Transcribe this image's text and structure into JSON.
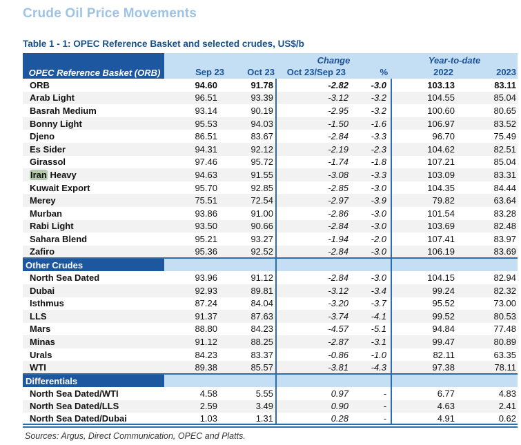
{
  "page": {
    "title": "Crude Oil Price Movements",
    "table_title": "Table 1 - 1: OPEC Reference Basket and selected crudes, US$/b",
    "sources": "Sources:  Argus, Direct Communication, OPEC and Platts."
  },
  "colors": {
    "page_title_blue": "#9DC3E6",
    "table_title_blue": "#164E8C",
    "dark_header_blue": "#1C57A0",
    "light_header_blue": "#C4DEF4",
    "header_text_blue": "#1A5296",
    "divider_blue": "#2A6CAD",
    "row_stripe_gray": "#F2F2F2",
    "search_highlight_green": "#B3CBAA"
  },
  "table": {
    "name_header": "OPEC Reference Basket (ORB)",
    "group_change": "Change",
    "group_ytd": "Year-to-date",
    "columns": [
      "Sep 23",
      "Oct 23",
      "Oct 23/Sep 23",
      "%",
      "2022",
      "2023"
    ],
    "sections": [
      {
        "header": null,
        "rows": [
          {
            "name": "ORB",
            "bold": true,
            "values": [
              "94.60",
              "91.78",
              "-2.82",
              "-3.0",
              "103.13",
              "83.11"
            ]
          },
          {
            "name": "Arab Light",
            "values": [
              "96.51",
              "93.39",
              "-3.12",
              "-3.2",
              "104.55",
              "85.04"
            ]
          },
          {
            "name": "Basrah Medium",
            "values": [
              "93.14",
              "90.19",
              "-2.95",
              "-3.2",
              "100.60",
              "80.65"
            ]
          },
          {
            "name": "Bonny Light",
            "values": [
              "95.53",
              "94.03",
              "-1.50",
              "-1.6",
              "106.97",
              "83.52"
            ]
          },
          {
            "name": "Djeno",
            "values": [
              "86.51",
              "83.67",
              "-2.84",
              "-3.3",
              "96.70",
              "75.49"
            ]
          },
          {
            "name": "Es Sider",
            "values": [
              "94.31",
              "92.12",
              "-2.19",
              "-2.3",
              "104.62",
              "82.51"
            ]
          },
          {
            "name": "Girassol",
            "values": [
              "97.46",
              "95.72",
              "-1.74",
              "-1.8",
              "107.21",
              "85.04"
            ]
          },
          {
            "name": "Iran Heavy",
            "highlight_word": "Iran",
            "values": [
              "94.63",
              "91.55",
              "-3.08",
              "-3.3",
              "103.09",
              "83.31"
            ]
          },
          {
            "name": "Kuwait Export",
            "values": [
              "95.70",
              "92.85",
              "-2.85",
              "-3.0",
              "104.35",
              "84.44"
            ]
          },
          {
            "name": "Merey",
            "values": [
              "75.51",
              "72.54",
              "-2.97",
              "-3.9",
              "79.82",
              "63.64"
            ]
          },
          {
            "name": "Murban",
            "values": [
              "93.86",
              "91.00",
              "-2.86",
              "-3.0",
              "101.54",
              "83.28"
            ]
          },
          {
            "name": "Rabi Light",
            "values": [
              "93.50",
              "90.66",
              "-2.84",
              "-3.0",
              "103.69",
              "82.48"
            ]
          },
          {
            "name": "Sahara Blend",
            "values": [
              "95.21",
              "93.27",
              "-1.94",
              "-2.0",
              "107.41",
              "83.97"
            ]
          },
          {
            "name": "Zafiro",
            "values": [
              "95.36",
              "92.52",
              "-2.84",
              "-3.0",
              "106.19",
              "83.69"
            ]
          }
        ]
      },
      {
        "header": "Other Crudes",
        "rows": [
          {
            "name": "North Sea Dated",
            "values": [
              "93.96",
              "91.12",
              "-2.84",
              "-3.0",
              "104.15",
              "82.94"
            ]
          },
          {
            "name": "Dubai",
            "values": [
              "92.93",
              "89.81",
              "-3.12",
              "-3.4",
              "99.24",
              "82.32"
            ]
          },
          {
            "name": "Isthmus",
            "values": [
              "87.24",
              "84.04",
              "-3.20",
              "-3.7",
              "95.52",
              "73.00"
            ]
          },
          {
            "name": "LLS",
            "values": [
              "91.37",
              "87.63",
              "-3.74",
              "-4.1",
              "99.52",
              "80.53"
            ]
          },
          {
            "name": "Mars",
            "values": [
              "88.80",
              "84.23",
              "-4.57",
              "-5.1",
              "94.84",
              "77.48"
            ]
          },
          {
            "name": "Minas",
            "values": [
              "91.12",
              "88.25",
              "-2.87",
              "-3.1",
              "99.47",
              "80.89"
            ]
          },
          {
            "name": "Urals",
            "values": [
              "84.23",
              "83.37",
              "-0.86",
              "-1.0",
              "82.11",
              "63.35"
            ]
          },
          {
            "name": "WTI",
            "values": [
              "89.38",
              "85.57",
              "-3.81",
              "-4.3",
              "97.38",
              "78.11"
            ]
          }
        ]
      },
      {
        "header": "Differentials",
        "rows": [
          {
            "name": "North Sea Dated/WTI",
            "values": [
              "4.58",
              "5.55",
              "0.97",
              "-",
              "6.77",
              "4.83"
            ]
          },
          {
            "name": "North Sea Dated/LLS",
            "values": [
              "2.59",
              "3.49",
              "0.90",
              "-",
              "4.63",
              "2.41"
            ]
          },
          {
            "name": "North Sea Dated/Dubai",
            "values": [
              "1.03",
              "1.31",
              "0.28",
              "-",
              "4.91",
              "0.62"
            ]
          }
        ]
      }
    ]
  }
}
